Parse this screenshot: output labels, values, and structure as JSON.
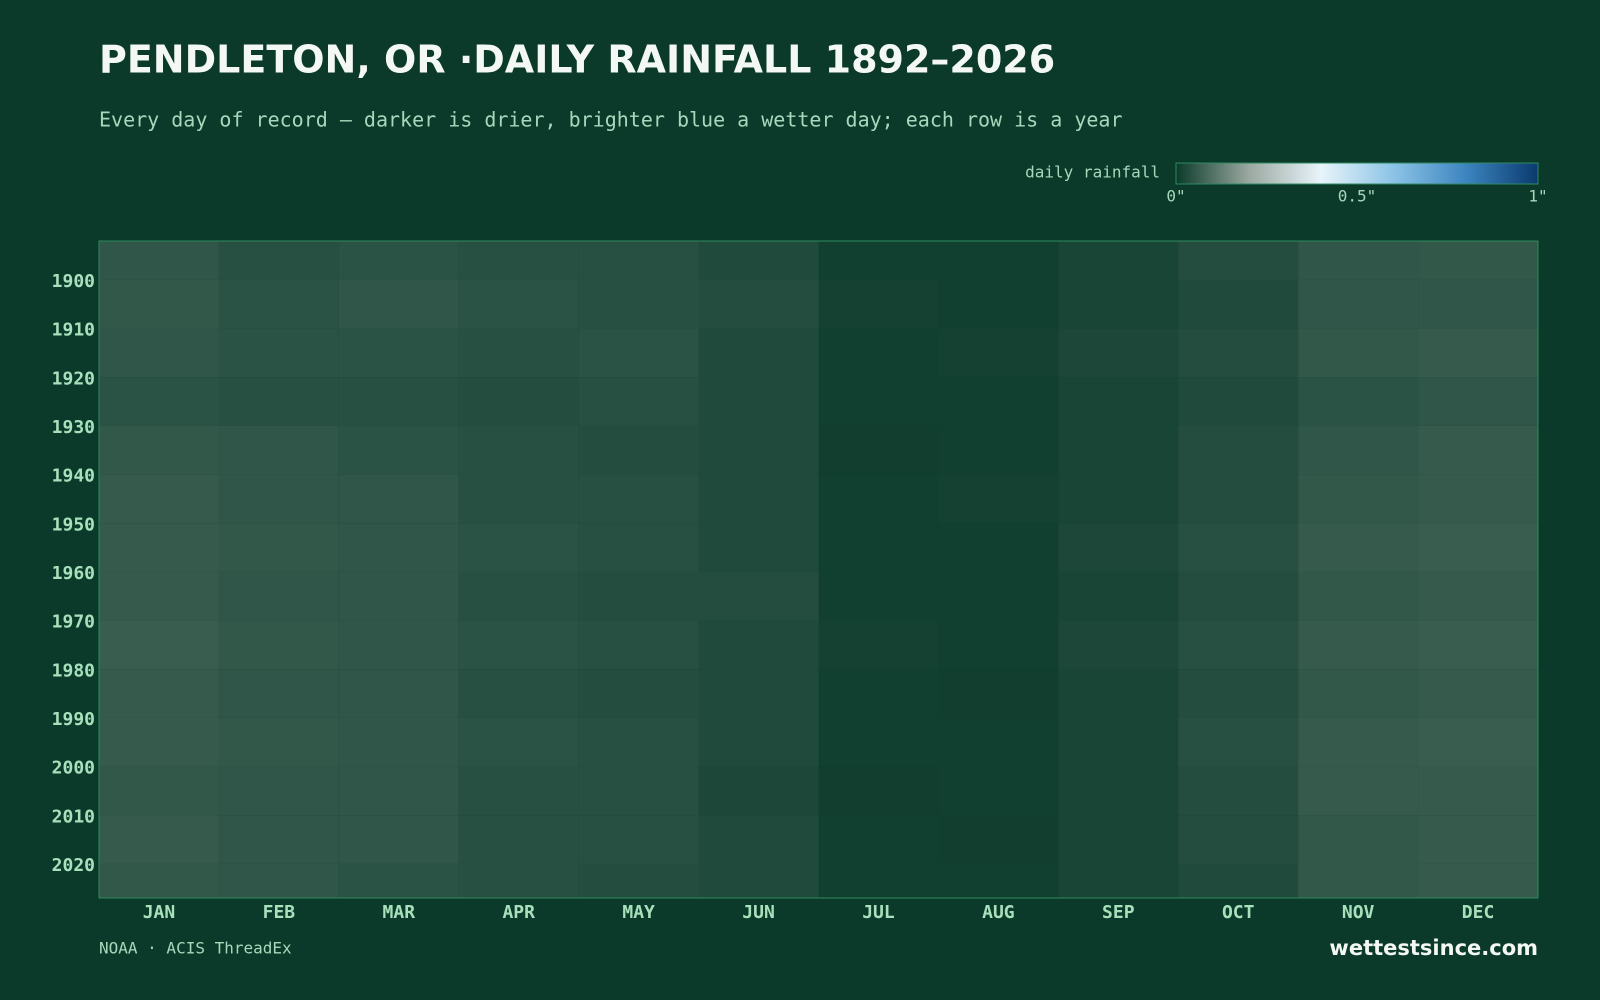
{
  "chart_data": {
    "type": "heatmap",
    "title": "PENDLETON, OR ·DAILY RAINFALL 1892–2026",
    "subtitle": "Every day of record — darker is drier, brighter blue a wetter day; each row is a year",
    "colorbar_title": "daily rainfall",
    "colorscale": [
      "#0b3a2a",
      "#9aa8a0",
      "#e8f4fa",
      "#8cc4e6",
      "#3d85c0",
      "#0a3a6e"
    ],
    "clim": [
      0,
      1
    ],
    "cticks": [
      {
        "value": 0,
        "label": "0\""
      },
      {
        "value": 0.5,
        "label": "0.5\""
      },
      {
        "value": 1,
        "label": "1\""
      }
    ],
    "categories": [
      "JAN",
      "FEB",
      "MAR",
      "APR",
      "MAY",
      "JUN",
      "JUL",
      "AUG",
      "SEP",
      "OCT",
      "NOV",
      "DEC"
    ],
    "ylim": [
      1892,
      2027
    ],
    "yticks": [
      1900,
      1910,
      1920,
      1930,
      1940,
      1950,
      1960,
      1970,
      1980,
      1990,
      2000,
      2010,
      2020
    ],
    "year_bins": [
      1892,
      1900,
      1910,
      1920,
      1930,
      1940,
      1950,
      1960,
      1970,
      1980,
      1990,
      2000,
      2010,
      2020,
      2027
    ],
    "values": [
      [
        0.05,
        0.04,
        0.045,
        0.04,
        0.04,
        0.03,
        0.01,
        0.01,
        0.02,
        0.035,
        0.05,
        0.055
      ],
      [
        0.055,
        0.045,
        0.05,
        0.045,
        0.04,
        0.035,
        0.012,
        0.01,
        0.02,
        0.03,
        0.05,
        0.05
      ],
      [
        0.05,
        0.045,
        0.045,
        0.04,
        0.045,
        0.03,
        0.01,
        0.012,
        0.025,
        0.035,
        0.055,
        0.06
      ],
      [
        0.045,
        0.04,
        0.04,
        0.035,
        0.04,
        0.03,
        0.01,
        0.01,
        0.02,
        0.03,
        0.045,
        0.05
      ],
      [
        0.055,
        0.05,
        0.045,
        0.04,
        0.035,
        0.03,
        0.008,
        0.01,
        0.02,
        0.035,
        0.05,
        0.06
      ],
      [
        0.06,
        0.05,
        0.05,
        0.04,
        0.04,
        0.03,
        0.01,
        0.012,
        0.02,
        0.035,
        0.055,
        0.06
      ],
      [
        0.06,
        0.055,
        0.05,
        0.045,
        0.04,
        0.03,
        0.01,
        0.01,
        0.025,
        0.04,
        0.06,
        0.065
      ],
      [
        0.06,
        0.05,
        0.05,
        0.04,
        0.035,
        0.035,
        0.01,
        0.01,
        0.02,
        0.035,
        0.055,
        0.06
      ],
      [
        0.065,
        0.055,
        0.05,
        0.045,
        0.04,
        0.03,
        0.012,
        0.01,
        0.025,
        0.04,
        0.06,
        0.065
      ],
      [
        0.06,
        0.05,
        0.05,
        0.04,
        0.035,
        0.03,
        0.01,
        0.008,
        0.02,
        0.035,
        0.055,
        0.06
      ],
      [
        0.06,
        0.055,
        0.05,
        0.045,
        0.04,
        0.03,
        0.01,
        0.01,
        0.02,
        0.04,
        0.06,
        0.065
      ],
      [
        0.055,
        0.05,
        0.05,
        0.04,
        0.04,
        0.025,
        0.008,
        0.01,
        0.02,
        0.035,
        0.06,
        0.06
      ],
      [
        0.06,
        0.05,
        0.05,
        0.04,
        0.04,
        0.03,
        0.01,
        0.008,
        0.02,
        0.035,
        0.055,
        0.06
      ],
      [
        0.055,
        0.05,
        0.045,
        0.04,
        0.035,
        0.03,
        0.01,
        0.01,
        0.02,
        0.03,
        0.055,
        0.06
      ]
    ],
    "source": "NOAA · ACIS ThreadEx",
    "brand": "wettestsince.com"
  }
}
